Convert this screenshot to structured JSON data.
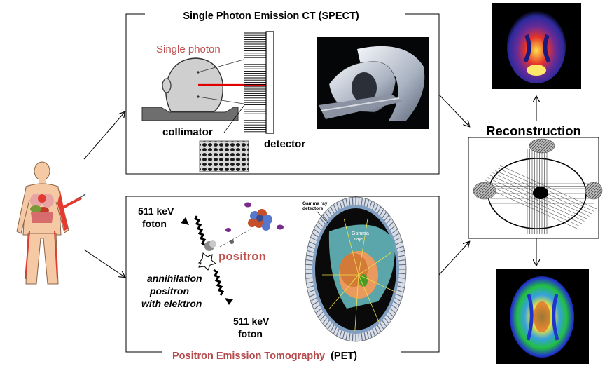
{
  "spect": {
    "title": "Single Photon Emission  CT (SPECT)",
    "single_photon": "Single photon",
    "collimator": "collimator",
    "detector": "detector"
  },
  "pet": {
    "energy_top_1": "511 keV",
    "energy_top_2": "foton",
    "positron": "positron",
    "annihilation_1": "annihilation",
    "annihilation_2": "positron",
    "annihilation_3": "with elektron",
    "energy_bottom_1": "511 keV",
    "energy_bottom_2": "foton",
    "scanner_detectors_1": "Gamma ray",
    "scanner_detectors_2": "detectors",
    "scanner_gamma_1": "Gamma",
    "scanner_gamma_2": "rays",
    "title_main": "Positron Emission Tomography",
    "title_abbrev": "(PET)"
  },
  "reconstruction": {
    "label": "Reconstruction"
  },
  "colors": {
    "pet_title": "#b5494b",
    "single_photon": "#c0504d",
    "positron": "#c0504d",
    "ray": "#e00000"
  }
}
